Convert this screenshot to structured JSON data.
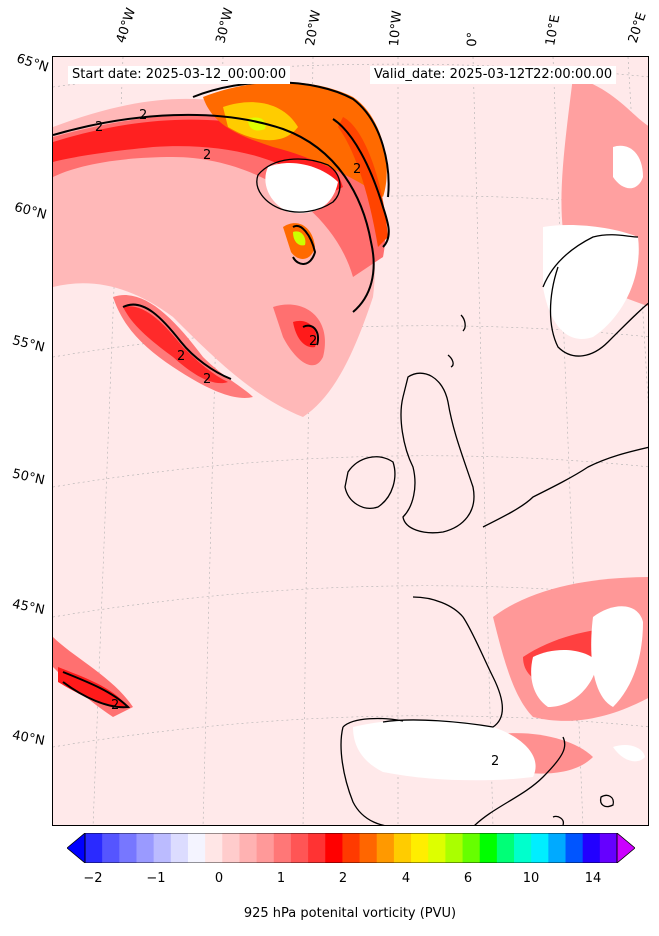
{
  "header": {
    "start_label": "Start date: 2025-03-12_00:00:00",
    "valid_label": "Valid_date: 2025-03-12T22:00:00.00"
  },
  "lon_labels": [
    "40°W",
    "30°W",
    "20°W",
    "10°W",
    "0°",
    "10°E",
    "20°E"
  ],
  "lat_labels": [
    "65°N",
    "60°N",
    "55°N",
    "50°N",
    "45°N",
    "40°N"
  ],
  "contour_label": "2",
  "colorbar": {
    "label": "925 hPa potenital vorticity (PVU)",
    "ticks": [
      "−2",
      "−1",
      "0",
      "1",
      "2",
      "4",
      "6",
      "10",
      "14"
    ],
    "colors": [
      "#0000ff",
      "#2a2aff",
      "#5555ff",
      "#7777ff",
      "#9a9aff",
      "#bbbbff",
      "#dcdcff",
      "#f4f4ff",
      "#ffe6e6",
      "#ffcccc",
      "#ffb2b2",
      "#ff9999",
      "#ff7777",
      "#ff5555",
      "#ff3333",
      "#ff0000",
      "#ff3a00",
      "#ff6600",
      "#ff9900",
      "#ffcc00",
      "#ffee00",
      "#ddff00",
      "#aaff00",
      "#66ff00",
      "#00ff00",
      "#00ff77",
      "#00ffcc",
      "#00eeff",
      "#00aaff",
      "#0055ff",
      "#2200ff",
      "#6600ff",
      "#aa00ff"
    ]
  }
}
